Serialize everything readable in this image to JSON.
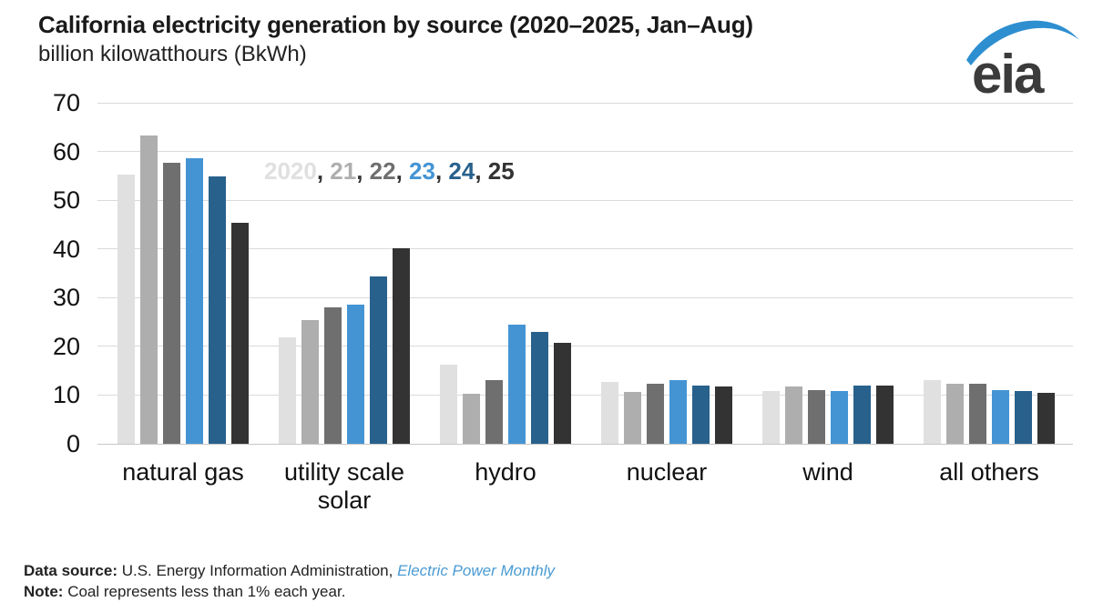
{
  "logo": {
    "text": "eia",
    "swoosh_color": "#2e8fd0",
    "text_color": "#3b3b3b"
  },
  "chart_data": {
    "type": "bar",
    "title": "California electricity generation by source (2020–2025, Jan–Aug)",
    "subtitle": "billion kilowatthours (BkWh)",
    "ylabel": "billion kilowatthours (BkWh)",
    "categories": [
      "natural gas",
      "utility scale\nsolar",
      "hydro",
      "nuclear",
      "wind",
      "all others"
    ],
    "series": [
      {
        "name": "2020",
        "color": "#e0e0e0",
        "values": [
          55.3,
          21.8,
          16.3,
          12.6,
          10.8,
          13.0
        ]
      },
      {
        "name": "21",
        "color": "#aeaeae",
        "values": [
          63.2,
          25.3,
          10.2,
          10.6,
          11.8,
          12.3
        ]
      },
      {
        "name": "22",
        "color": "#6f6f6f",
        "values": [
          57.6,
          28.0,
          13.0,
          12.3,
          11.1,
          12.3
        ]
      },
      {
        "name": "23",
        "color": "#4494d4",
        "values": [
          58.6,
          28.5,
          24.5,
          13.0,
          10.8,
          11.1
        ]
      },
      {
        "name": "24",
        "color": "#28618c",
        "values": [
          54.9,
          34.4,
          22.9,
          12.0,
          12.0,
          10.8
        ]
      },
      {
        "name": "25",
        "color": "#333333",
        "values": [
          45.3,
          40.2,
          20.8,
          11.8,
          11.9,
          10.5
        ]
      }
    ],
    "ylim": [
      0,
      70
    ],
    "yticks": [
      0,
      10,
      20,
      30,
      40,
      50,
      60,
      70
    ],
    "grid": true,
    "legend": {
      "position": "inside-top-left",
      "items": [
        "2020",
        "21",
        "22",
        "23",
        "24",
        "25"
      ],
      "separator": ", ",
      "separator_color": "#333333"
    }
  },
  "footer": {
    "source_label": "Data source:",
    "source_text": "U.S. Energy Information Administration,",
    "source_link": "Electric Power Monthly",
    "note_label": "Note:",
    "note_text": "Coal represents less than 1% each year.",
    "link_color": "#4a9bd3"
  }
}
